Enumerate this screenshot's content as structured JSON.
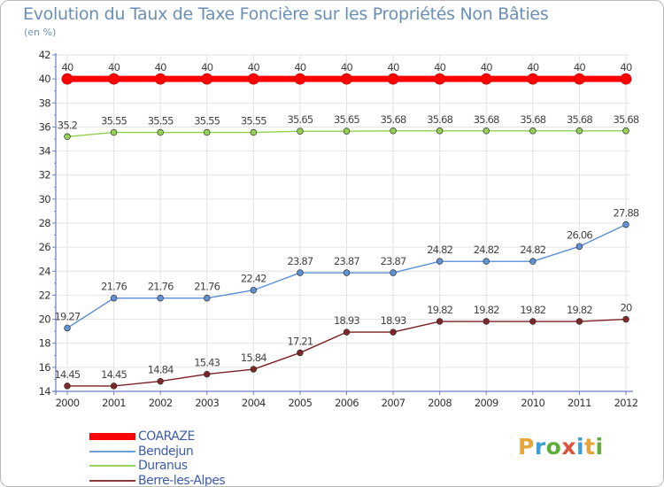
{
  "title": "Evolution du Taux de Taxe Foncière sur les Propriétés Non Bâties",
  "subtitle": "(en %)",
  "chart_data": {
    "type": "line",
    "title": "Evolution du Taux de Taxe Foncière sur les Propriétés Non Bâties",
    "ylabel": "(en %)",
    "xlabel": "",
    "x": [
      "2000",
      "2001",
      "2002",
      "2003",
      "2004",
      "2005",
      "2006",
      "2007",
      "2008",
      "2009",
      "2010",
      "2011",
      "2012"
    ],
    "ylim": [
      14,
      42
    ],
    "yticks": [
      "14",
      "16",
      "18",
      "20",
      "22",
      "24",
      "26",
      "28",
      "30",
      "32",
      "34",
      "36",
      "38",
      "40",
      "42"
    ],
    "grid": true,
    "legend_position": "bottom-left",
    "series": [
      {
        "name": "COARAZE",
        "color": "#ff0000",
        "values": [
          40,
          40,
          40,
          40,
          40,
          40,
          40,
          40,
          40,
          40,
          40,
          40,
          40
        ],
        "labels": [
          "40",
          "40",
          "40",
          "40",
          "40",
          "40",
          "40",
          "40",
          "40",
          "40",
          "40",
          "40",
          "40"
        ]
      },
      {
        "name": "Bendejun",
        "color": "#5b8ed4",
        "values": [
          19.27,
          21.76,
          21.76,
          21.76,
          22.42,
          23.87,
          23.87,
          23.87,
          24.82,
          24.82,
          24.82,
          26.06,
          27.88
        ],
        "labels": [
          "19.27",
          "21.76",
          "21.76",
          "21.76",
          "22.42",
          "23.87",
          "23.87",
          "23.87",
          "24.82",
          "24.82",
          "24.82",
          "26.06",
          "27.88"
        ]
      },
      {
        "name": "Duranus",
        "color": "#8fd04e",
        "values": [
          35.2,
          35.55,
          35.55,
          35.55,
          35.55,
          35.65,
          35.65,
          35.68,
          35.68,
          35.68,
          35.68,
          35.68,
          35.68
        ],
        "labels": [
          "35.2",
          "35.55",
          "35.55",
          "35.55",
          "35.55",
          "35.65",
          "35.65",
          "35.68",
          "35.68",
          "35.68",
          "35.68",
          "35.68",
          "35.68"
        ]
      },
      {
        "name": "Berre-les-Alpes",
        "color": "#7a2020",
        "values": [
          14.45,
          14.45,
          14.84,
          15.43,
          15.84,
          17.21,
          18.93,
          18.93,
          19.82,
          19.82,
          19.82,
          19.82,
          20
        ],
        "labels": [
          "14.45",
          "14.45",
          "14.84",
          "15.43",
          "15.84",
          "17.21",
          "18.93",
          "18.93",
          "19.82",
          "19.82",
          "19.82",
          "19.82",
          "20"
        ]
      }
    ]
  },
  "legend": {
    "items": [
      {
        "label": "COARAZE",
        "color": "#ff0000",
        "marker": "thick"
      },
      {
        "label": "Bendejun",
        "color": "#6e9fd8",
        "marker": "thin"
      },
      {
        "label": "Duranus",
        "color": "#97d160",
        "marker": "thin"
      },
      {
        "label": "Berre-les-Alpes",
        "color": "#8a3b3b",
        "marker": "thin"
      }
    ]
  },
  "logo": {
    "letters": [
      "P",
      "r",
      "o",
      "x",
      "i",
      "t",
      "i"
    ],
    "colors": [
      "#e8a33a",
      "#3d9fd8",
      "#5fae3a",
      "#e0503a",
      "#3d9fd8",
      "#e8a33a",
      "#5fae3a"
    ]
  }
}
